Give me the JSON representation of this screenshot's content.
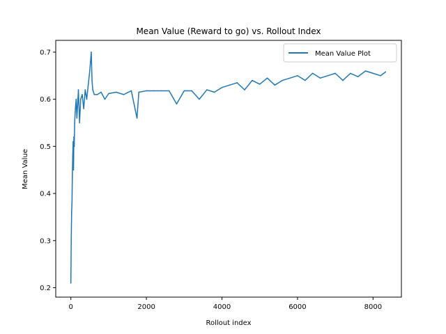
{
  "chart_data": {
    "type": "line",
    "title": "Mean Value (Reward to go) vs. Rollout Index",
    "xlabel": "Rollout index",
    "ylabel": "Mean Value",
    "xlim": [
      -400,
      8750
    ],
    "ylim": [
      0.18,
      0.725
    ],
    "xticks": [
      0,
      2000,
      4000,
      6000,
      8000
    ],
    "yticks": [
      0.2,
      0.3,
      0.4,
      0.5,
      0.6,
      0.7
    ],
    "xtick_labels": [
      "0",
      "2000",
      "4000",
      "6000",
      "8000"
    ],
    "ytick_labels": [
      "0.2",
      "0.3",
      "0.4",
      "0.5",
      "0.6",
      "0.7"
    ],
    "legend": {
      "position": "top-right"
    },
    "grid": false,
    "series": [
      {
        "name": "Mean Value Plot",
        "color": "#1f77b4",
        "x": [
          0,
          10,
          20,
          30,
          40,
          50,
          60,
          70,
          80,
          90,
          100,
          120,
          140,
          160,
          180,
          200,
          230,
          260,
          300,
          340,
          380,
          420,
          460,
          500,
          540,
          560,
          580,
          620,
          700,
          800,
          900,
          1000,
          1200,
          1400,
          1600,
          1750,
          1800,
          2000,
          2200,
          2400,
          2600,
          2800,
          3000,
          3200,
          3400,
          3600,
          3800,
          4000,
          4200,
          4400,
          4600,
          4800,
          5000,
          5200,
          5400,
          5600,
          5800,
          6000,
          6200,
          6400,
          6600,
          6800,
          7000,
          7200,
          7400,
          7600,
          7800,
          8000,
          8200,
          8330
        ],
        "y": [
          0.21,
          0.3,
          0.36,
          0.38,
          0.44,
          0.48,
          0.51,
          0.45,
          0.52,
          0.5,
          0.55,
          0.58,
          0.6,
          0.56,
          0.59,
          0.62,
          0.55,
          0.6,
          0.61,
          0.58,
          0.62,
          0.6,
          0.63,
          0.66,
          0.7,
          0.64,
          0.62,
          0.61,
          0.61,
          0.615,
          0.6,
          0.612,
          0.615,
          0.61,
          0.618,
          0.56,
          0.615,
          0.618,
          0.618,
          0.618,
          0.618,
          0.59,
          0.618,
          0.618,
          0.6,
          0.62,
          0.615,
          0.625,
          0.63,
          0.635,
          0.62,
          0.64,
          0.632,
          0.645,
          0.63,
          0.64,
          0.645,
          0.65,
          0.64,
          0.655,
          0.645,
          0.65,
          0.655,
          0.64,
          0.655,
          0.648,
          0.66,
          0.655,
          0.65,
          0.658
        ]
      }
    ]
  }
}
